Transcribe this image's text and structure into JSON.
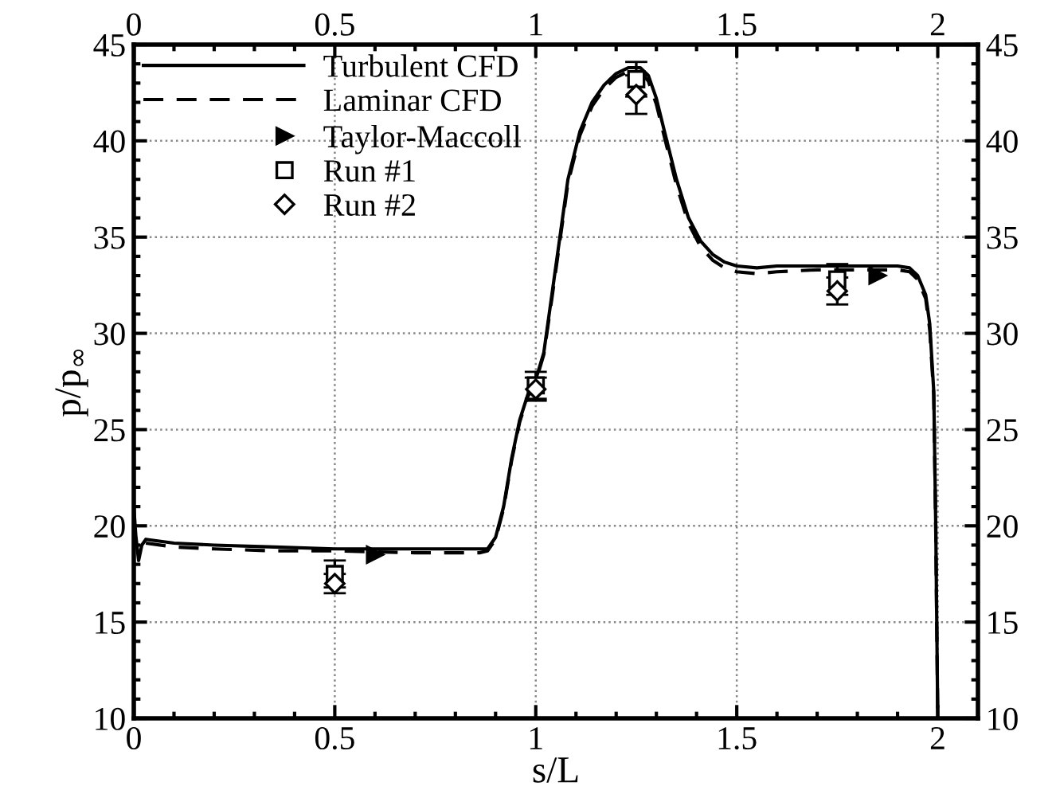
{
  "chart_data": {
    "type": "line",
    "xlabel": "s/L",
    "ylabel": "p/p$_{∞}$",
    "xlim": [
      0,
      2.1
    ],
    "xticks": [
      0,
      0.5,
      1,
      1.5,
      2
    ],
    "x2lim": [
      0,
      2.1
    ],
    "x2ticks": [
      0,
      0.5,
      1,
      1.5,
      2
    ],
    "ylim": [
      10,
      45
    ],
    "yticks": [
      10,
      15,
      20,
      25,
      30,
      35,
      40,
      45
    ],
    "y2lim": [
      10,
      45
    ],
    "y2ticks": [
      10,
      15,
      20,
      25,
      30,
      35,
      40,
      45
    ],
    "grid": true,
    "legend": "top left",
    "series": [
      {
        "name": "Turbulent CFD",
        "color": "#000000",
        "line_style": "solid",
        "marker": "none",
        "x": [
          0,
          0.005,
          0.012,
          0.02,
          0.03,
          0.1,
          0.2,
          0.35,
          0.5,
          0.7,
          0.86,
          0.88,
          0.9,
          0.92,
          0.94,
          0.96,
          0.98,
          1.0,
          1.02,
          1.04,
          1.06,
          1.08,
          1.11,
          1.14,
          1.17,
          1.2,
          1.23,
          1.26,
          1.28,
          1.3,
          1.32,
          1.35,
          1.38,
          1.41,
          1.44,
          1.47,
          1.5,
          1.55,
          1.6,
          1.7,
          1.8,
          1.9,
          1.93,
          1.95,
          1.97,
          1.98,
          1.99,
          1.995,
          2.0
        ],
        "values": [
          21,
          19.5,
          18.2,
          19.0,
          19.3,
          19.1,
          19.0,
          18.9,
          18.8,
          18.8,
          18.8,
          18.8,
          19.4,
          21,
          23.5,
          25.5,
          26.8,
          27.6,
          29,
          32,
          35,
          38,
          40.5,
          42,
          42.9,
          43.5,
          43.8,
          43.8,
          43.4,
          42.2,
          40.5,
          38,
          36,
          34.8,
          34.1,
          33.7,
          33.5,
          33.4,
          33.5,
          33.5,
          33.5,
          33.5,
          33.4,
          33,
          32,
          30.5,
          27,
          20,
          10
        ]
      },
      {
        "name": "Laminar CFD",
        "color": "#000000",
        "line_style": "dashed",
        "marker": "none",
        "x": [
          0.03,
          0.1,
          0.2,
          0.35,
          0.5,
          0.7,
          0.86,
          0.88,
          0.9,
          0.92,
          0.94,
          0.96,
          0.98,
          1.0,
          1.02,
          1.04,
          1.06,
          1.08,
          1.11,
          1.14,
          1.17,
          1.2,
          1.23,
          1.26,
          1.28,
          1.3,
          1.32,
          1.35,
          1.38,
          1.41,
          1.44,
          1.47,
          1.5,
          1.55,
          1.6,
          1.7,
          1.8,
          1.9,
          1.93,
          1.95,
          1.97,
          1.98,
          1.99,
          1.995,
          2.0
        ],
        "values": [
          19.1,
          18.9,
          18.8,
          18.7,
          18.7,
          18.6,
          18.6,
          18.7,
          19.3,
          20.9,
          23.4,
          25.4,
          26.7,
          27.5,
          28.9,
          31.8,
          34.8,
          37.8,
          40.3,
          41.8,
          42.7,
          43.3,
          43.6,
          43.6,
          43.1,
          41.9,
          40.2,
          37.7,
          35.7,
          34.5,
          33.8,
          33.4,
          33.2,
          33.1,
          33.2,
          33.3,
          33.3,
          33.3,
          33.2,
          32.8,
          31.8,
          30.2,
          26.8,
          19.8,
          10
        ]
      },
      {
        "name": "Taylor-Maccoll",
        "type": "scatter",
        "color": "#000000",
        "marker": "triangle",
        "x": [
          0.6,
          1.85
        ],
        "values": [
          18.5,
          33.0
        ]
      },
      {
        "name": "Run #1",
        "type": "scatter",
        "color": "#000000",
        "marker": "square",
        "x": [
          0.5,
          1.0,
          1.25,
          1.75
        ],
        "values": [
          17.5,
          27.3,
          43.2,
          32.8
        ],
        "errors": [
          0.7,
          0.7,
          0.9,
          0.8
        ]
      },
      {
        "name": "Run #2",
        "type": "scatter",
        "color": "#000000",
        "marker": "diamond",
        "x": [
          0.5,
          1.0,
          1.25,
          1.75
        ],
        "values": [
          17.0,
          27.1,
          42.4,
          32.2
        ],
        "errors": [
          0.5,
          0.6,
          1.0,
          0.7
        ]
      }
    ]
  }
}
